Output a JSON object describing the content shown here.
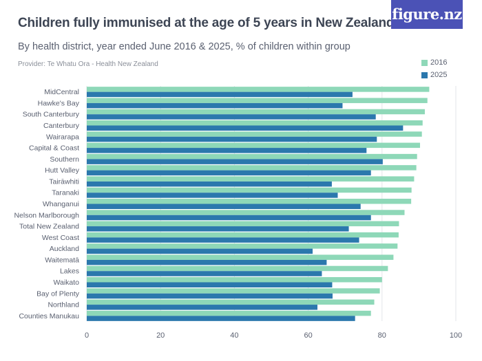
{
  "header": {
    "title": "Children fully immunised at the age of 5 years in New Zealand",
    "subtitle": "By health district, year ended June 2016 & 2025, % of children within group",
    "provider": "Provider: Te Whatu Ora - Health New Zealand",
    "logo_text": "figure.nz"
  },
  "colors": {
    "series_2016": "#8ed8b8",
    "series_2025": "#2b78ad",
    "grid": "#e3e5ea",
    "axis_text": "#5a6070",
    "logo_bg": "#4b52b6"
  },
  "chart_data": {
    "type": "bar",
    "orientation": "horizontal",
    "categories": [
      "MidCentral",
      "Hawke's Bay",
      "South Canterbury",
      "Canterbury",
      "Wairarapa",
      "Capital & Coast",
      "Southern",
      "Hutt Valley",
      "Tairāwhiti",
      "Taranaki",
      "Whanganui",
      "Nelson Marlborough",
      "Total New Zealand",
      "West Coast",
      "Auckland",
      "Waitematā",
      "Lakes",
      "Waikato",
      "Bay of Plenty",
      "Northland",
      "Counties Manukau"
    ],
    "series": [
      {
        "name": "2016",
        "values": [
          92.8,
          92.3,
          91.6,
          91.0,
          90.8,
          90.3,
          89.5,
          89.3,
          88.7,
          88.0,
          87.9,
          86.1,
          84.6,
          84.5,
          84.2,
          83.1,
          81.6,
          80.0,
          79.4,
          77.9,
          77.0
        ]
      },
      {
        "name": "2025",
        "values": [
          72.0,
          69.3,
          78.3,
          85.7,
          78.6,
          75.8,
          80.2,
          77.0,
          66.4,
          68.0,
          74.2,
          77.0,
          71.0,
          73.8,
          61.2,
          65.0,
          63.7,
          66.5,
          66.6,
          62.5,
          72.7
        ]
      }
    ],
    "xlabel": "",
    "ylabel": "",
    "xlim": [
      0,
      100
    ],
    "x_ticks": [
      "0",
      "20",
      "40",
      "60",
      "80",
      "100"
    ],
    "grid": true,
    "legend_position": "top-right"
  }
}
